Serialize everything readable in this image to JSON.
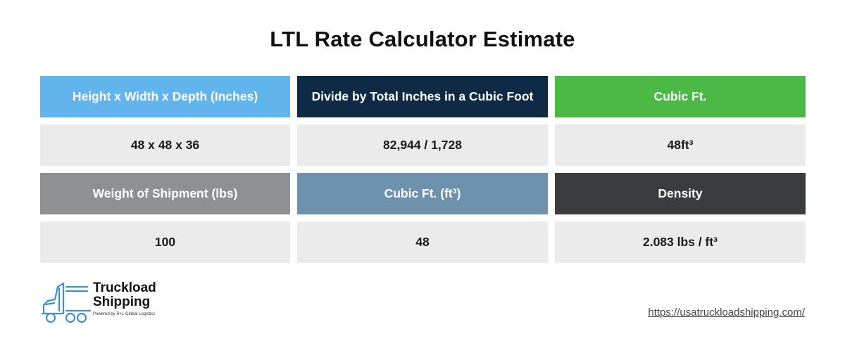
{
  "title": "LTL Rate Calculator Estimate",
  "table": {
    "row1": [
      "Height x Width x Depth (Inches)",
      "Divide by Total Inches in a Cubic Foot",
      "Cubic Ft."
    ],
    "row2": [
      "48 x 48 x 36",
      "82,944 / 1,728",
      "48ft³"
    ],
    "row3": [
      "Weight of Shipment (lbs)",
      "Cubic Ft. (ft³)",
      "Density"
    ],
    "row4": [
      "100",
      "48",
      "2.083 lbs / ft³"
    ]
  },
  "colors": {
    "header_blue": "#62b4ed",
    "header_navy": "#0e2a45",
    "header_green": "#4cb946",
    "header_gray": "#8f9091",
    "header_steel": "#6e92ae",
    "header_dark": "#3b3c3d",
    "value_bg": "#ebebeb",
    "logo_blue": "#3d8fd4"
  },
  "logo": {
    "line1": "Truckload",
    "line2": "Shipping",
    "tagline": "Powered by R+L Global Logistics",
    "icon": "truck-icon"
  },
  "footer": {
    "url": "https://usatruckloadshipping.com/"
  }
}
